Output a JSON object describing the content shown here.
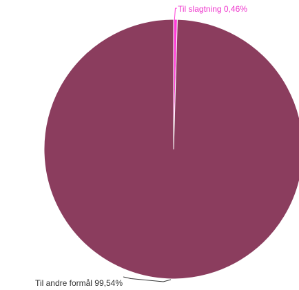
{
  "chart_data": {
    "type": "pie",
    "title": "",
    "slices": [
      {
        "label": "Til slagtning",
        "value": 0.46,
        "display": "Til slagtning 0,46%",
        "color": "#ff3bd6",
        "label_color": "#ee33cc"
      },
      {
        "label": "Til andre formål",
        "value": 99.54,
        "display": "Til andre formål 99,54%",
        "color": "#8b3d5e",
        "label_color": "#333333"
      }
    ]
  }
}
